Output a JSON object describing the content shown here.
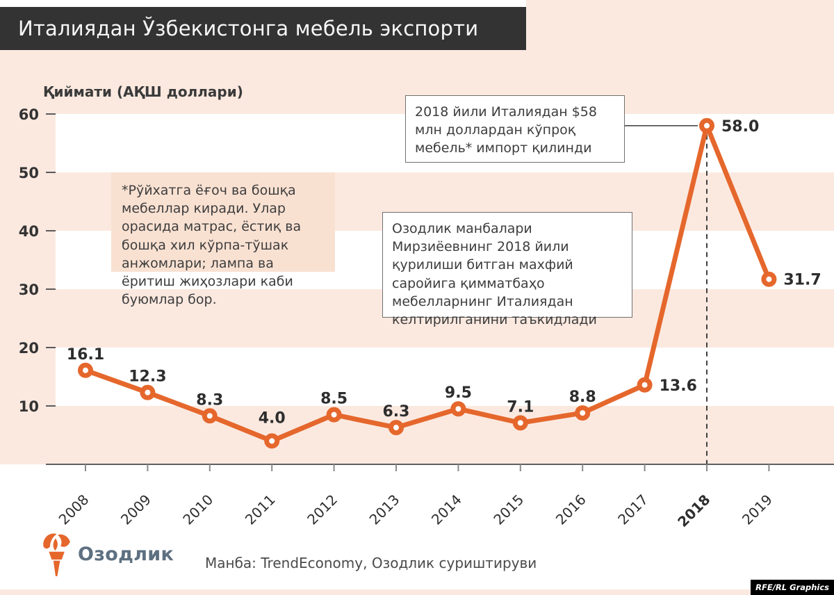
{
  "title_bar": {
    "title": "Италиядан Ўзбекистонга мебель экспорти"
  },
  "chart_data": {
    "type": "line",
    "title": "Италиядан Ўзбекистонга мебель экспорти",
    "y_axis_label": "Қиймати (АҚШ доллари)",
    "x": [
      "2008",
      "2009",
      "2010",
      "2011",
      "2012",
      "2013",
      "2014",
      "2015",
      "2016",
      "2017",
      "2018",
      "2019"
    ],
    "values": [
      16.1,
      12.3,
      8.3,
      4.0,
      8.5,
      6.3,
      9.5,
      7.1,
      8.8,
      13.6,
      58.0,
      31.7
    ],
    "y_ticks": [
      10,
      20,
      30,
      40,
      50,
      60
    ],
    "ylim": [
      0,
      62
    ],
    "highlight_year": "2018",
    "label_side_right": [
      "2017",
      "2018",
      "2019"
    ],
    "line_color": "#e5672c",
    "grid": "striped-horizontal-bands",
    "legend": "none"
  },
  "annotations": {
    "peak_note": "2018 йили Италиядан $58 млн доллардан кўпроқ мебель* импорт қилинди",
    "footnote": "*Рўйхатга ёғоч ва бошқа мебеллар киради. Улар орасида матрас, ёстиқ ва бошқа хил кўрпа-тўшак анжомлари; лампа ва ёритиш жиҳозлари каби буюмлар бор.",
    "source_note": "Озодлик манбалари Мирзиёевнинг 2018 йили қурилиши битган махфий саройига қимматбаҳо мебелларнинг Италиядан келтирилганини таъкидлади"
  },
  "footer": {
    "logo_text": "Озодлик",
    "source": "Манба: TrendEconomy, Озодлик суриштируви",
    "credit": "RFE/RL Graphics"
  },
  "colors": {
    "accent": "#e5672c",
    "page_bg": "#fbe9e0",
    "stripe_white": "#ffffff",
    "title_bar_bg": "#333333",
    "note_bg": "#f9e1d2",
    "logo_text_color": "#5d7081"
  }
}
